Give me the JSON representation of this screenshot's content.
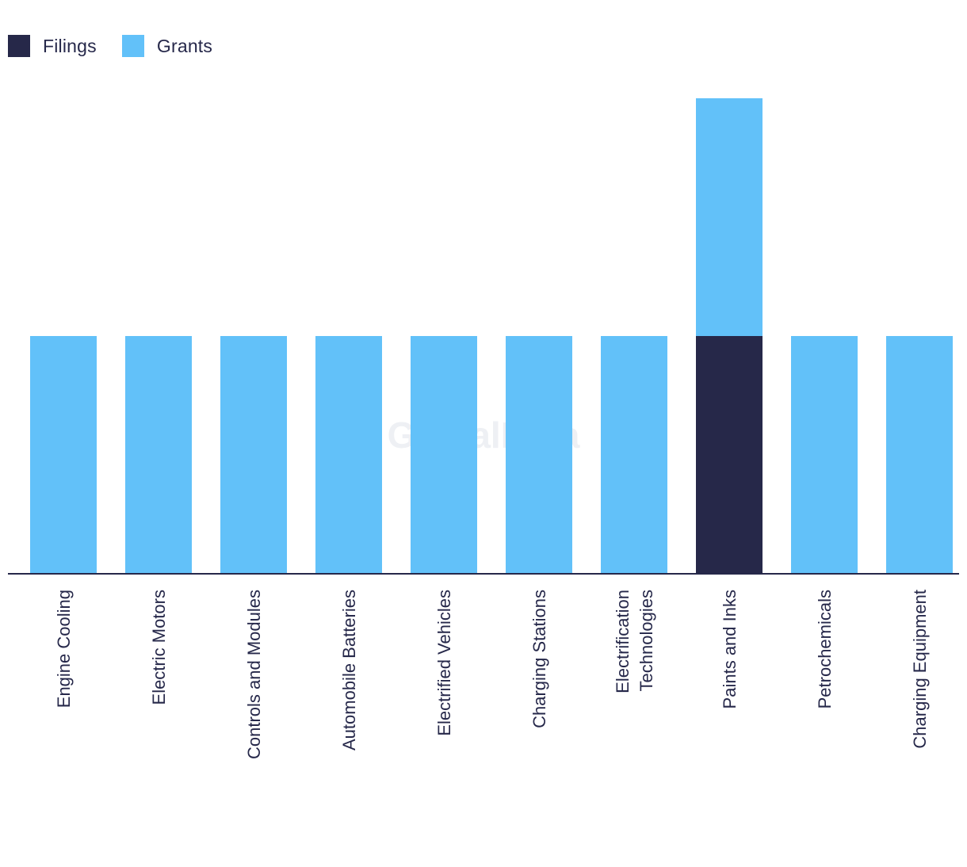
{
  "colors": {
    "filings": "#262849",
    "grants": "#62c1f9",
    "axis": "#26284a",
    "text": "#26284a"
  },
  "watermark": "GlobalData",
  "chart_data": {
    "type": "bar",
    "stacked": true,
    "title": "",
    "xlabel": "",
    "ylabel": "",
    "ylim": [
      0,
      2
    ],
    "legend_position": "top-left",
    "categories": [
      [
        "Engine Cooling"
      ],
      [
        "Electric Motors"
      ],
      [
        "Controls and Modules"
      ],
      [
        "Automobile Batteries"
      ],
      [
        "Electrified Vehicles"
      ],
      [
        "Charging Stations"
      ],
      [
        "Electrification",
        "Technologies"
      ],
      [
        "Paints and Inks"
      ],
      [
        "Petrochemicals"
      ],
      [
        "Charging Equipment"
      ]
    ],
    "series": [
      {
        "name": "Filings",
        "color": "#262849",
        "values": [
          0,
          0,
          0,
          0,
          0,
          0,
          0,
          1,
          0,
          0
        ]
      },
      {
        "name": "Grants",
        "color": "#62c1f9",
        "values": [
          1,
          1,
          1,
          1,
          1,
          1,
          1,
          1,
          1,
          1
        ]
      }
    ]
  }
}
